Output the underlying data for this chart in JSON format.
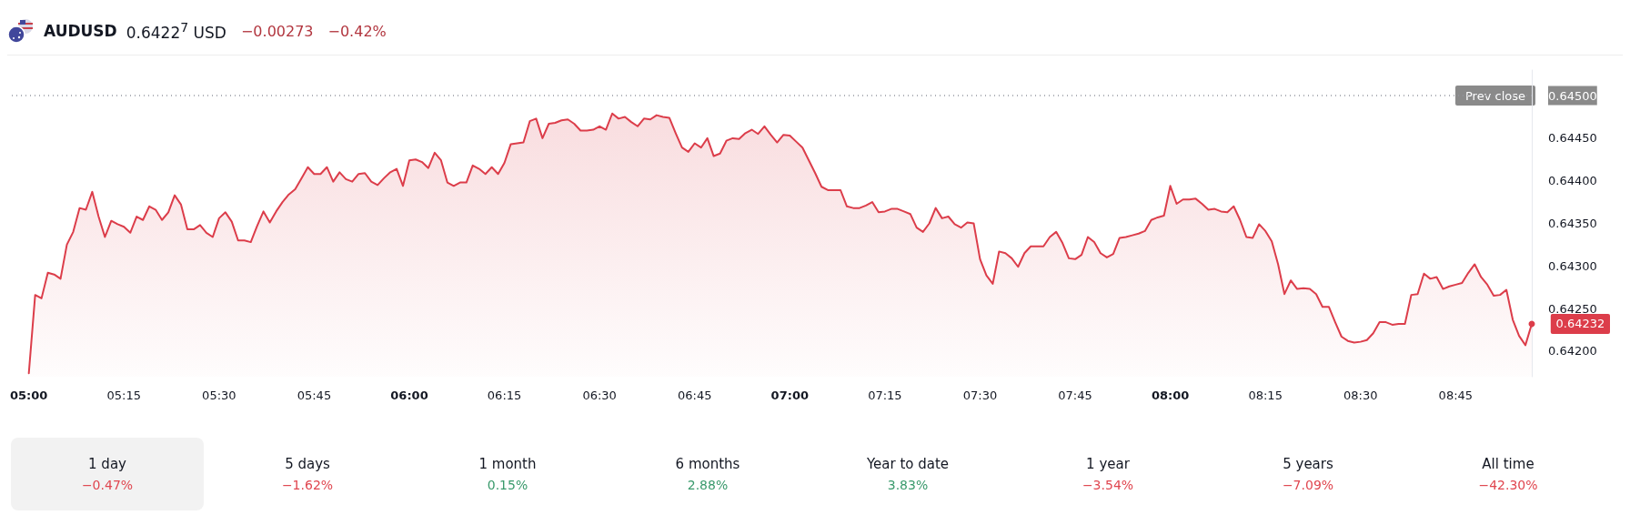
{
  "chart_data": [
    {
      "type": "area",
      "title": "AUDUSD",
      "subtitle": "0.6422$^{7}$ USD",
      "annotations": [
        "−0.00273",
        "−0.42%"
      ],
      "categories": [
        "05:00",
        null,
        null,
        null,
        null,
        null,
        null,
        null,
        null,
        null,
        null,
        null,
        null,
        null,
        null,
        "05:15",
        null,
        null,
        null,
        null,
        null,
        null,
        null,
        null,
        null,
        null,
        null,
        null,
        null,
        null,
        "05:30",
        null,
        null,
        null,
        null,
        null,
        null,
        null,
        null,
        null,
        null,
        null,
        null,
        null,
        null,
        "05:45",
        null,
        null,
        null,
        null,
        null,
        null,
        null,
        null,
        null,
        null,
        null,
        null,
        null,
        null,
        "06:00",
        null,
        null,
        null,
        null,
        null,
        null,
        null,
        null,
        null,
        null,
        null,
        null,
        null,
        null,
        "06:15",
        null,
        null,
        null,
        null,
        null,
        null,
        null,
        null,
        null,
        null,
        null,
        null,
        null,
        null,
        "06:30",
        null,
        null,
        null,
        null,
        null,
        null,
        null,
        null,
        null,
        null,
        null,
        null,
        null,
        null,
        "06:45",
        null,
        null,
        null,
        null,
        null,
        null,
        null,
        null,
        null,
        null,
        null,
        null,
        null,
        null,
        "07:00",
        null,
        null,
        null,
        null,
        null,
        null,
        null,
        null,
        null,
        null,
        null,
        null,
        null,
        null,
        "07:15",
        null,
        null,
        null,
        null,
        null,
        null,
        null,
        null,
        null,
        null,
        null,
        null,
        null,
        null,
        "07:30",
        null,
        null,
        null,
        null,
        null,
        null,
        null,
        null,
        null,
        null,
        null,
        null,
        null,
        null,
        "07:45",
        null,
        null,
        null,
        null,
        null,
        null,
        null,
        null,
        null,
        null,
        null,
        null,
        null,
        null,
        "08:00",
        null,
        null,
        null,
        null,
        null,
        null,
        null,
        null,
        null,
        null,
        null,
        null,
        null,
        null,
        "08:15",
        null,
        null,
        null,
        null,
        null,
        null,
        null,
        null,
        null,
        null,
        null,
        null,
        null,
        null,
        "08:30",
        null,
        null,
        null,
        null,
        null,
        null,
        null,
        null,
        null,
        null,
        null,
        null,
        null,
        null,
        "08:45",
        null,
        null,
        null,
        null,
        null,
        null,
        null,
        null,
        null,
        null,
        null,
        null
      ],
      "series": [
        {
          "color": "#dc3d4a",
          "values": [
            0.64174,
            0.64266,
            0.64262,
            0.64292,
            0.6429,
            0.64285,
            0.64325,
            0.6434,
            0.64368,
            0.64366,
            0.64387,
            0.64358,
            0.64334,
            0.64353,
            0.64349,
            0.64346,
            0.64339,
            0.64358,
            0.64354,
            0.6437,
            0.64366,
            0.64354,
            0.64363,
            0.64383,
            0.64372,
            0.64343,
            0.64343,
            0.64348,
            0.64339,
            0.64334,
            0.64356,
            0.64363,
            0.64352,
            0.6433,
            0.6433,
            0.64328,
            0.64347,
            0.64364,
            0.64351,
            0.64364,
            0.64375,
            0.64384,
            0.6439,
            0.64403,
            0.64416,
            0.64408,
            0.64408,
            0.64416,
            0.64399,
            0.6441,
            0.64402,
            0.64399,
            0.64408,
            0.64409,
            0.64399,
            0.64395,
            0.64403,
            0.6441,
            0.64414,
            0.64394,
            0.64424,
            0.64425,
            0.64422,
            0.64415,
            0.64433,
            0.64424,
            0.64398,
            0.64394,
            0.64398,
            0.64398,
            0.64418,
            0.64414,
            0.64408,
            0.64416,
            0.64408,
            0.64421,
            0.64443,
            0.64444,
            0.64445,
            0.6447,
            0.64473,
            0.6445,
            0.64467,
            0.64468,
            0.64471,
            0.64472,
            0.64467,
            0.64459,
            0.64459,
            0.6446,
            0.64464,
            0.6446,
            0.64479,
            0.64473,
            0.64475,
            0.64469,
            0.64464,
            0.64473,
            0.64472,
            0.64477,
            0.64475,
            0.64474,
            0.64456,
            0.64439,
            0.64434,
            0.64444,
            0.64439,
            0.6445,
            0.64429,
            0.64432,
            0.64447,
            0.6445,
            0.64449,
            0.64456,
            0.6446,
            0.64455,
            0.64464,
            0.64454,
            0.64445,
            0.64454,
            0.64453,
            0.64446,
            0.64439,
            0.64424,
            0.64409,
            0.64393,
            0.64389,
            0.64389,
            0.64389,
            0.6437,
            0.64368,
            0.64368,
            0.64371,
            0.64375,
            0.64363,
            0.64364,
            0.64367,
            0.64367,
            0.64364,
            0.64361,
            0.64345,
            0.6434,
            0.6435,
            0.64368,
            0.64356,
            0.64358,
            0.64349,
            0.64345,
            0.64351,
            0.6435,
            0.64308,
            0.64289,
            0.64279,
            0.64317,
            0.64315,
            0.64309,
            0.64299,
            0.64315,
            0.64323,
            0.64323,
            0.64323,
            0.64334,
            0.6434,
            0.64327,
            0.64309,
            0.64308,
            0.64313,
            0.64334,
            0.64328,
            0.64315,
            0.6431,
            0.64314,
            0.64333,
            0.64334,
            0.64336,
            0.64338,
            0.64341,
            0.64354,
            0.64357,
            0.64359,
            0.64394,
            0.64373,
            0.64378,
            0.64378,
            0.64379,
            0.64373,
            0.64366,
            0.64367,
            0.64364,
            0.64363,
            0.6437,
            0.64354,
            0.64334,
            0.64333,
            0.64349,
            0.64341,
            0.64329,
            0.64302,
            0.64267,
            0.64283,
            0.64273,
            0.64274,
            0.64273,
            0.64267,
            0.64252,
            0.64252,
            0.64234,
            0.64217,
            0.64212,
            0.6421,
            0.64211,
            0.64213,
            0.64221,
            0.64234,
            0.64234,
            0.64231,
            0.64232,
            0.64232,
            0.64266,
            0.64267,
            0.64291,
            0.64285,
            0.64287,
            0.64273,
            0.64276,
            0.64278,
            0.6428,
            0.64292,
            0.64302,
            0.64287,
            0.64278,
            0.64265,
            0.64266,
            0.64272,
            0.64237,
            0.64218,
            0.64207,
            0.64232
          ],
          "value_labels": [
            null,
            null,
            null,
            null,
            null,
            null,
            null,
            null,
            null,
            null,
            null,
            null,
            null,
            null,
            null,
            null,
            null,
            null,
            null,
            null,
            null,
            null,
            null,
            null,
            null,
            null,
            null,
            null,
            null,
            null,
            null,
            null,
            null,
            null,
            null,
            null,
            null,
            null,
            null,
            null,
            null,
            null,
            null,
            null,
            null,
            null,
            null,
            null,
            null,
            null,
            null,
            null,
            null,
            null,
            null,
            null,
            null,
            null,
            null,
            null,
            null,
            null,
            null,
            null,
            null,
            null,
            null,
            null,
            null,
            null,
            null,
            null,
            null,
            null,
            null,
            null,
            null,
            null,
            null,
            null,
            null,
            null,
            null,
            null,
            null,
            null,
            null,
            null,
            null,
            null,
            null,
            null,
            null,
            null,
            null,
            null,
            null,
            null,
            null,
            null,
            null,
            null,
            null,
            null,
            null,
            null,
            null,
            null,
            null,
            null,
            null,
            null,
            null,
            null,
            null,
            null,
            null,
            null,
            null,
            null,
            null,
            null,
            null,
            null,
            null,
            null,
            null,
            null,
            null,
            null,
            null,
            null,
            null,
            null,
            null,
            null,
            null,
            null,
            null,
            null,
            null,
            null,
            null,
            null,
            null,
            null,
            null,
            null,
            null,
            null,
            null,
            null,
            null,
            null,
            null,
            null,
            null,
            null,
            null,
            null,
            null,
            null,
            null,
            null,
            null,
            null,
            null,
            null,
            null,
            null,
            null,
            null,
            null,
            null,
            null,
            null,
            null,
            null,
            null,
            null,
            null,
            null,
            null,
            null,
            null,
            null,
            null,
            null,
            null,
            null,
            null,
            null,
            null,
            null,
            null,
            null,
            null,
            null,
            null,
            null,
            null,
            null,
            null,
            null,
            null,
            null,
            null,
            null,
            null,
            null,
            null,
            null,
            null,
            null,
            null,
            null,
            null,
            null,
            null,
            null,
            null,
            null,
            null,
            null,
            null,
            null,
            null,
            null,
            null,
            null,
            null,
            null,
            null,
            null,
            null,
            null,
            null,
            "0.64232"
          ]
        }
      ],
      "ylim": [
        0.6417,
        0.6453
      ],
      "yticks": [
        {
          "value": 0.642,
          "label": "0.64200"
        },
        {
          "value": 0.6425,
          "label": "0.64250"
        },
        {
          "value": 0.643,
          "label": "0.64300"
        },
        {
          "value": 0.6435,
          "label": "0.64350"
        },
        {
          "value": 0.644,
          "label": "0.64400"
        },
        {
          "value": 0.6445,
          "label": "0.64450"
        },
        {
          "value": 0.645,
          "label": "0.64500"
        }
      ],
      "ref_lines": [
        {
          "axis": "y",
          "value": 0.645,
          "label": "Prev close",
          "color": "#9598a1",
          "line_style": "dotted"
        }
      ],
      "grid": false,
      "marker": "none",
      "line_style": "solid"
    },
    {
      "type": "other",
      "categories": [
        "1 day",
        "5 days",
        "1 month",
        "6 months",
        "Year to date",
        "1 year",
        "5 years",
        "All time"
      ],
      "value_labels": [
        "−0.47%",
        "−1.62%",
        "0.15%",
        "2.88%",
        "3.83%",
        "−3.54%",
        "−7.09%",
        "−42.30%"
      ],
      "colors": [
        "#e0464f",
        "#e0464f",
        "#3a9a6c",
        "#3a9a6c",
        "#3a9a6c",
        "#e0464f",
        "#e0464f",
        "#e0464f"
      ]
    }
  ]
}
